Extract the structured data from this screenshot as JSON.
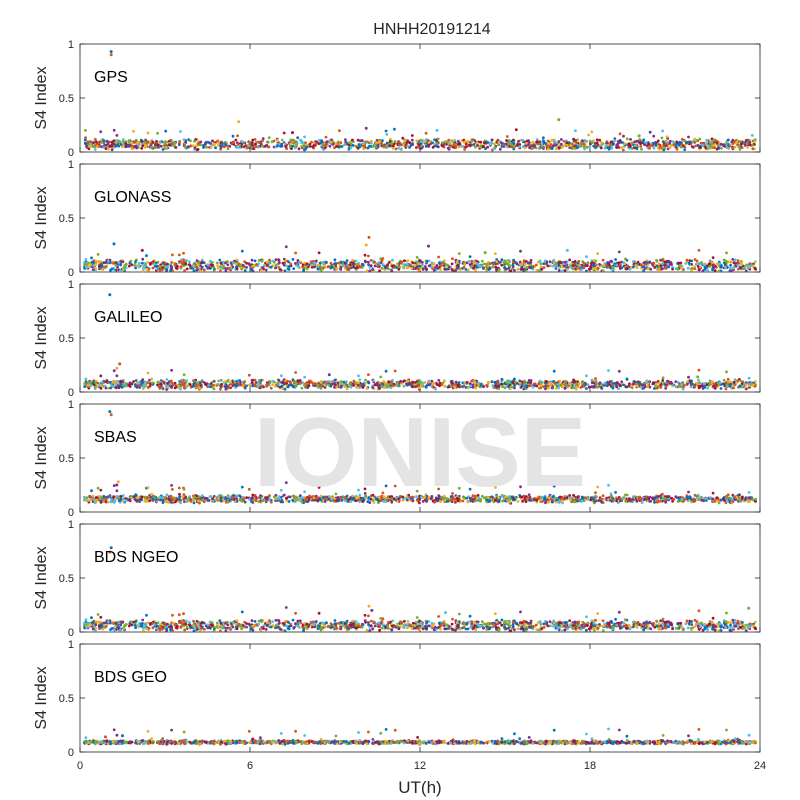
{
  "chart_data": {
    "type": "scatter",
    "title": "HNHH20191214",
    "xlabel": "UT(h)",
    "ylabel": "S4 Index",
    "xlim": [
      0,
      24
    ],
    "ylim": [
      0,
      1
    ],
    "xticks": [
      0,
      6,
      12,
      18,
      24
    ],
    "yticks": [
      0,
      0.5,
      1
    ],
    "ytick_labels": [
      "0",
      "0.5",
      "1"
    ],
    "grid": false,
    "watermark": "IONISE",
    "series_colors": [
      "#0072BD",
      "#D95319",
      "#EDB120",
      "#7E2F8E",
      "#77AC30",
      "#4DBEEE",
      "#A2142F"
    ],
    "panels": [
      {
        "name": "GPS",
        "baseline": 0.07,
        "spread": 0.035,
        "outliers": [
          [
            1.1,
            0.93
          ],
          [
            1.1,
            0.9
          ],
          [
            5.6,
            0.28
          ],
          [
            10.1,
            0.22
          ],
          [
            16.9,
            0.3
          ],
          [
            12.6,
            0.2
          ],
          [
            7.5,
            0.18
          ]
        ]
      },
      {
        "name": "GLONASS",
        "baseline": 0.06,
        "spread": 0.04,
        "outliers": [
          [
            1.2,
            0.26
          ],
          [
            10.2,
            0.32
          ],
          [
            10.1,
            0.25
          ],
          [
            12.3,
            0.24
          ],
          [
            14.3,
            0.18
          ],
          [
            17.2,
            0.2
          ],
          [
            2.2,
            0.2
          ]
        ]
      },
      {
        "name": "GALILEO",
        "baseline": 0.07,
        "spread": 0.03,
        "outliers": [
          [
            1.05,
            0.9
          ],
          [
            1.4,
            0.26
          ],
          [
            1.3,
            0.22
          ],
          [
            8.8,
            0.16
          ],
          [
            21.8,
            0.14
          ]
        ]
      },
      {
        "name": "SBAS",
        "baseline": 0.12,
        "spread": 0.025,
        "outliers": [
          [
            1.05,
            0.93
          ],
          [
            1.1,
            0.9
          ],
          [
            1.35,
            0.28
          ],
          [
            1.3,
            0.25
          ]
        ]
      },
      {
        "name": "BDS NGEO",
        "baseline": 0.06,
        "spread": 0.035,
        "outliers": [
          [
            1.1,
            0.78
          ],
          [
            1.05,
            0.74
          ],
          [
            10.2,
            0.24
          ],
          [
            10.3,
            0.2
          ],
          [
            23.6,
            0.22
          ],
          [
            12.9,
            0.18
          ]
        ]
      },
      {
        "name": "BDS GEO",
        "baseline": 0.09,
        "spread": 0.012,
        "outliers": [
          [
            1.5,
            0.15
          ],
          [
            0.9,
            0.14
          ]
        ]
      }
    ]
  }
}
